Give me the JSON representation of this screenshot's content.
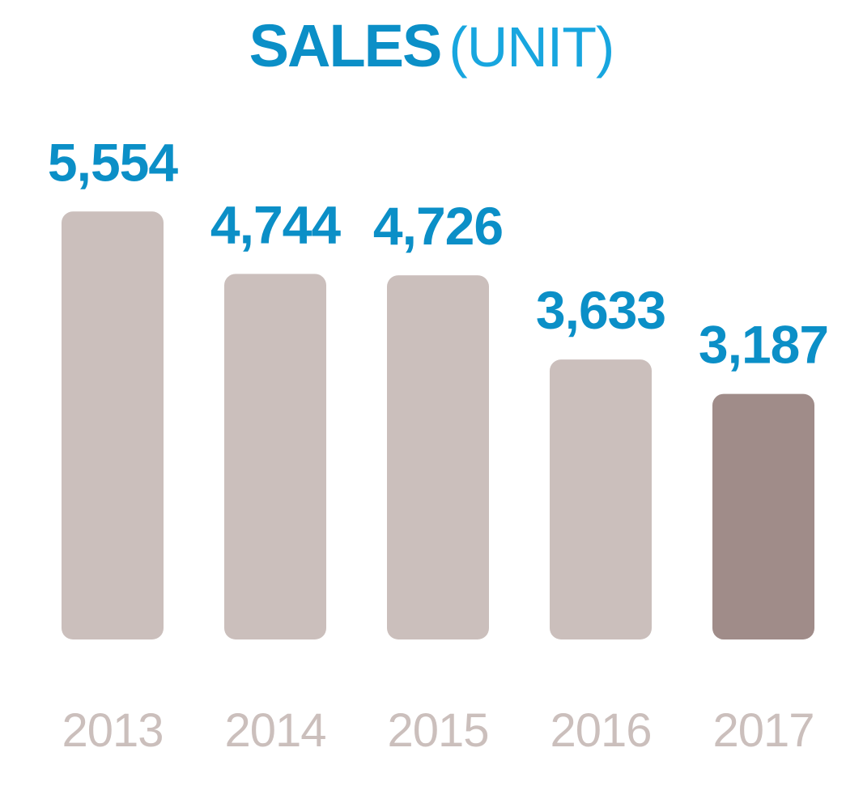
{
  "chart_data": {
    "type": "bar",
    "title": "SALES",
    "subtitle": "(UNIT)",
    "xlabel": "",
    "ylabel": "",
    "categories": [
      "2013",
      "2014",
      "2015",
      "2016",
      "2017"
    ],
    "values": [
      5554,
      4744,
      4726,
      3633,
      3187
    ],
    "value_labels": [
      "5,554",
      "4,744",
      "4,726",
      "3,633",
      "3,187"
    ],
    "grid": false,
    "legend": "none",
    "colors": {
      "bar": "#cbbfbc",
      "bar_highlight": "#a08c89",
      "value_label": "#0b8fc7",
      "tick_label": "#cbbfbc",
      "title": "#0b8fc7",
      "subtitle": "#18a6df"
    },
    "highlight_index": 4
  }
}
